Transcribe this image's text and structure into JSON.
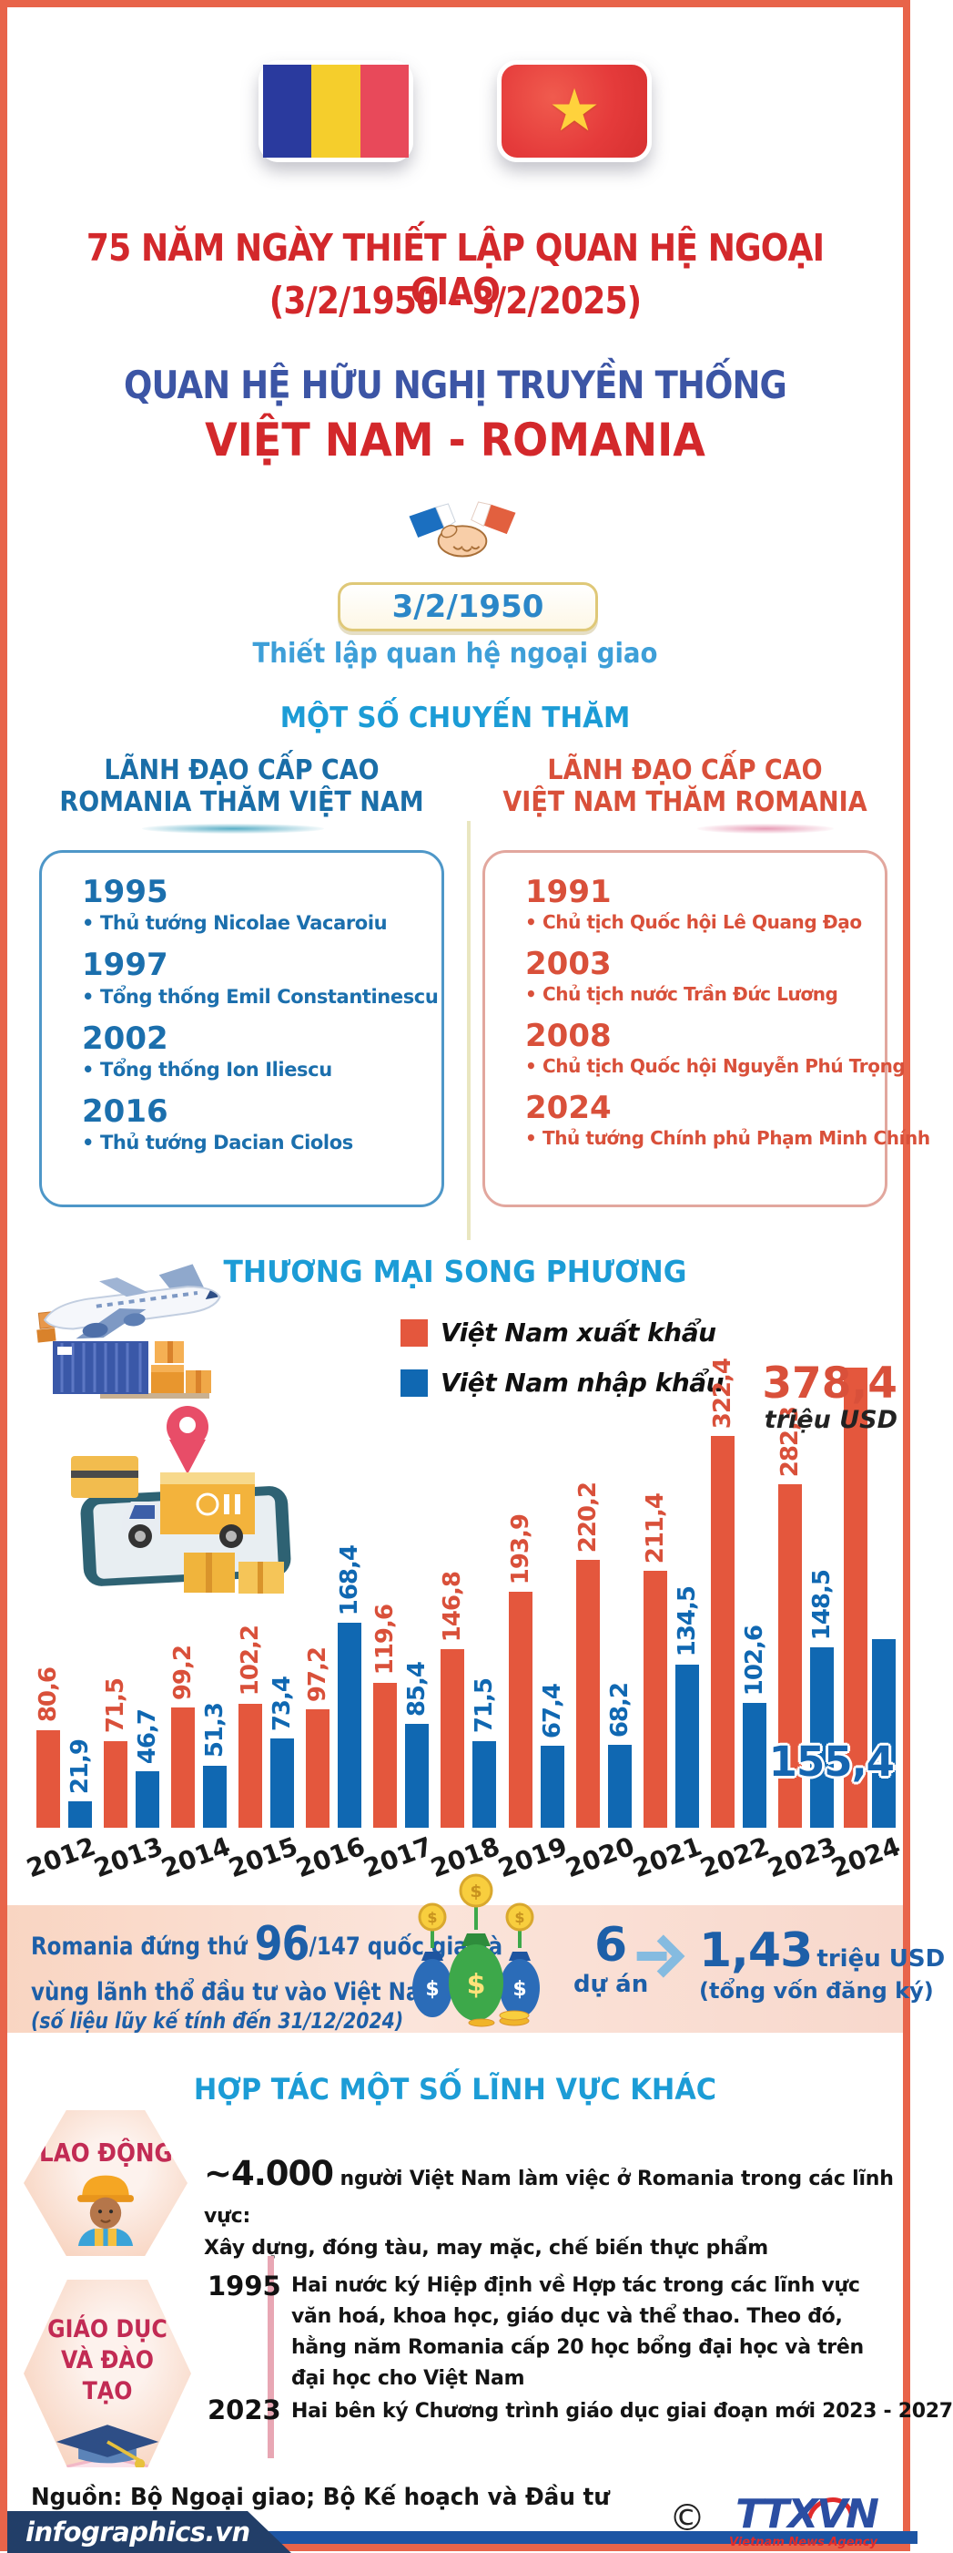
{
  "colors": {
    "frame": "#E8644A",
    "red_heading": "#D3282B",
    "indigo_heading": "#3C55A5",
    "azure_heading": "#1C9CD6",
    "export_bar": "#E4573D",
    "import_bar": "#1068B2",
    "invest_text": "#1D5FA8",
    "badge_text": "#C22B54",
    "banner_bg": "#223E68"
  },
  "header": {
    "title_line1": "75 NĂM NGÀY THIẾT LẬP QUAN HỆ NGOẠI GIAO",
    "title_line2": "(3/2/1950 - 3/2/2025)",
    "subtitle": "QUAN HỆ HỮU NGHỊ TRUYỀN THỐNG",
    "countries": "VIỆT NAM - ROMANIA"
  },
  "milestone": {
    "date": "3/2/1950",
    "caption": "Thiết lập quan hệ ngoại giao"
  },
  "visits": {
    "title": "MỘT SỐ CHUYẾN THĂM",
    "left": {
      "header_line1": "LÃNH ĐẠO CẤP CAO",
      "header_line2": "ROMANIA THĂM VIỆT NAM",
      "items": [
        {
          "year": "1995",
          "name": "Thủ tướng Nicolae Vacaroiu"
        },
        {
          "year": "1997",
          "name": "Tổng thống Emil Constantinescu"
        },
        {
          "year": "2002",
          "name": "Tổng thống Ion Iliescu"
        },
        {
          "year": "2016",
          "name": "Thủ tướng Dacian Ciolos"
        }
      ]
    },
    "right": {
      "header_line1": "LÃNH ĐẠO CẤP CAO",
      "header_line2": "VIỆT NAM THĂM ROMANIA",
      "items": [
        {
          "year": "1991",
          "name": "Chủ tịch Quốc hội Lê Quang Đạo"
        },
        {
          "year": "2003",
          "name": "Chủ tịch nước Trần Đức Lương"
        },
        {
          "year": "2008",
          "name": "Chủ tịch Quốc hội Nguyễn Phú Trọng"
        },
        {
          "year": "2024",
          "name": "Thủ tướng Chính phủ Phạm Minh Chính"
        }
      ]
    }
  },
  "trade": {
    "title": "THƯƠNG MẠI SONG PHƯƠNG",
    "peak_value": "378,4",
    "peak_unit": "triệu USD",
    "import_peak_label": "155,4"
  },
  "chart_data": {
    "type": "bar",
    "title": "THƯƠNG MẠI SONG PHƯƠNG",
    "unit": "triệu USD",
    "categories": [
      "2012",
      "2013",
      "2014",
      "2015",
      "2016",
      "2017",
      "2018",
      "2019",
      "2020",
      "2021",
      "2022",
      "2023",
      "2024"
    ],
    "series": [
      {
        "name": "Việt Nam xuất khẩu",
        "color": "#E4573D",
        "values": [
          80.6,
          71.5,
          99.2,
          102.2,
          97.2,
          119.6,
          146.8,
          193.9,
          220.2,
          211.4,
          322.4,
          282.3,
          378.4
        ]
      },
      {
        "name": "Việt Nam nhập khẩu",
        "color": "#1068B2",
        "values": [
          21.9,
          46.7,
          51.3,
          73.4,
          168.4,
          85.4,
          71.5,
          67.4,
          68.2,
          134.5,
          102.6,
          148.5,
          155.4
        ]
      }
    ],
    "legend_position": "top-center",
    "value_label_style": "rotated 90deg, decimal comma",
    "ylim": [
      0,
      400
    ],
    "grid": false
  },
  "investment": {
    "line1_prefix": "Romania đứng thứ ",
    "rank": "96",
    "line1_suffix": "/147 quốc gia và",
    "line2": "vùng lãnh thổ đầu tư vào Việt Nam",
    "note": "(số liệu lũy kế tính đến 31/12/2024)",
    "projects_value": "6",
    "projects_label": "dự án",
    "amount_value": "1,43",
    "amount_unit": "triệu USD",
    "amount_note": "(tổng vốn đăng ký)"
  },
  "cooperation": {
    "title": "HỢP TÁC MỘT SỐ LĨNH VỰC KHÁC",
    "labor": {
      "badge": "LAO ĐỘNG",
      "amount": "~4.000",
      "text": " người Việt Nam làm việc ở Romania trong các lĩnh vực:",
      "text2": "Xây dựng, đóng tàu, may mặc, chế biến thực phẩm"
    },
    "education": {
      "badge_line1": "GIÁO DỤC",
      "badge_line2": "VÀ ĐÀO TẠO",
      "rows": [
        {
          "year": "1995",
          "text": "Hai nước ký Hiệp định về Hợp tác trong các lĩnh vực văn hoá, khoa học, giáo dục và thể thao. Theo đó, hằng năm Romania cấp 20 học bổng đại học và trên đại học cho Việt Nam"
        },
        {
          "year": "2023",
          "text": "Hai bên ký Chương trình giáo dục giai đoạn mới 2023 - 2027"
        }
      ]
    }
  },
  "footer": {
    "source": "Nguồn: Bộ Ngoại giao; Bộ Kế hoạch và Đầu tư",
    "site": "infographics.vn",
    "copyright": "©",
    "agency": "TTXVN",
    "agency_caption": "Vietnam News Agency"
  }
}
